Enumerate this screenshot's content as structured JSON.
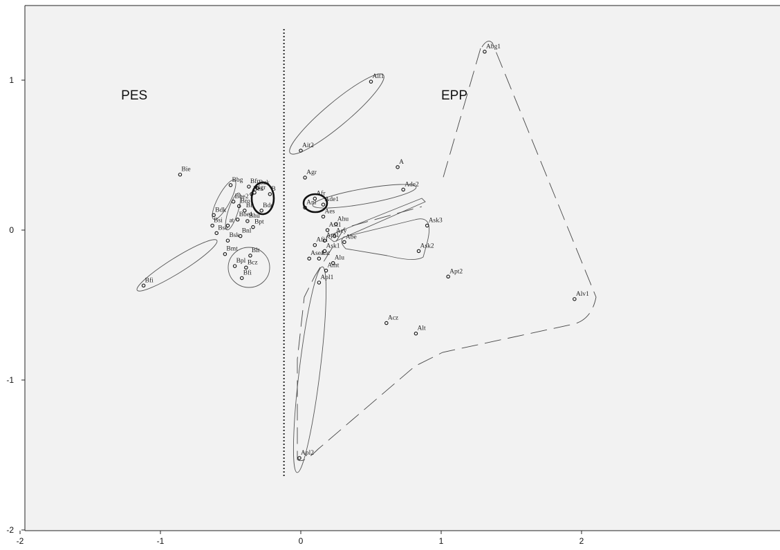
{
  "chart_data": {
    "type": "scatter",
    "title": "",
    "xlabel": "",
    "ylabel": "",
    "xlim": [
      -2,
      3.5
    ],
    "ylim": [
      -2,
      1.35
    ],
    "x_ticks": [
      -2,
      -1,
      0,
      1,
      2
    ],
    "x_tick_labels": [
      "-2",
      "-1",
      "0",
      "1",
      "2"
    ],
    "y_ticks": [
      -2,
      -1,
      0,
      1
    ],
    "y_tick_labels": [
      "-2",
      "-1",
      "0",
      "1"
    ],
    "grid": false,
    "background": "#f2f2f2",
    "divider_x": -0.12,
    "region_labels": [
      {
        "text": "PES",
        "x": -1.28,
        "y": 0.87
      },
      {
        "text": "EPP",
        "x": 1.0,
        "y": 0.87
      }
    ],
    "points": [
      {
        "label": "Bie",
        "x": -0.86,
        "y": 0.37
      },
      {
        "label": "Bbg",
        "x": -0.5,
        "y": 0.3
      },
      {
        "label": "Bfr",
        "x": -0.37,
        "y": 0.29
      },
      {
        "label": "Buk",
        "x": -0.31,
        "y": 0.28
      },
      {
        "label": "B",
        "x": -0.22,
        "y": 0.24
      },
      {
        "label": "Bgr",
        "x": -0.33,
        "y": 0.25
      },
      {
        "label": "Bes",
        "x": -0.35,
        "y": 0.24
      },
      {
        "label": "Bde",
        "x": -0.28,
        "y": 0.13
      },
      {
        "label": "Bbe2",
        "x": -0.48,
        "y": 0.19
      },
      {
        "label": "Bro",
        "x": -0.44,
        "y": 0.16
      },
      {
        "label": "Bit",
        "x": -0.4,
        "y": 0.13
      },
      {
        "label": "Bdk",
        "x": -0.62,
        "y": 0.1
      },
      {
        "label": "Bbe1",
        "x": -0.45,
        "y": 0.07
      },
      {
        "label": "Bhu",
        "x": -0.38,
        "y": 0.06
      },
      {
        "label": "at",
        "x": -0.52,
        "y": 0.03
      },
      {
        "label": "Bpt",
        "x": -0.34,
        "y": 0.02
      },
      {
        "label": "Bsi",
        "x": -0.63,
        "y": 0.03
      },
      {
        "label": "Bse",
        "x": -0.6,
        "y": -0.02
      },
      {
        "label": "Bnl",
        "x": -0.43,
        "y": -0.04
      },
      {
        "label": "Bsk",
        "x": -0.52,
        "y": -0.07
      },
      {
        "label": "Bmt",
        "x": -0.54,
        "y": -0.16
      },
      {
        "label": "Blt",
        "x": -0.36,
        "y": -0.17
      },
      {
        "label": "Bpl",
        "x": -0.47,
        "y": -0.24
      },
      {
        "label": "Bcz",
        "x": -0.39,
        "y": -0.25
      },
      {
        "label": "Bfi",
        "x": -0.42,
        "y": -0.32
      },
      {
        "label": "Bfi",
        "x": -1.12,
        "y": -0.37
      },
      {
        "label": "Ait1",
        "x": 0.5,
        "y": 0.99
      },
      {
        "label": "Ait2",
        "x": 0.0,
        "y": 0.53
      },
      {
        "label": "Abg1",
        "x": 1.31,
        "y": 1.19
      },
      {
        "label": "A",
        "x": 0.69,
        "y": 0.42
      },
      {
        "label": "Agr",
        "x": 0.03,
        "y": 0.35
      },
      {
        "label": "Ade2",
        "x": 0.73,
        "y": 0.27
      },
      {
        "label": "Afr",
        "x": 0.1,
        "y": 0.21
      },
      {
        "label": "Ade1",
        "x": 0.16,
        "y": 0.17
      },
      {
        "label": "Anl",
        "x": 0.03,
        "y": 0.15
      },
      {
        "label": "Aes",
        "x": 0.16,
        "y": 0.09
      },
      {
        "label": "Ahu",
        "x": 0.25,
        "y": 0.04
      },
      {
        "label": "Ask3",
        "x": 0.9,
        "y": 0.03
      },
      {
        "label": "Asi1",
        "x": 0.19,
        "y": 0.0
      },
      {
        "label": "Acy",
        "x": 0.24,
        "y": -0.04
      },
      {
        "label": "Afi1",
        "x": 0.1,
        "y": -0.1
      },
      {
        "label": "Apt1",
        "x": 0.17,
        "y": -0.07
      },
      {
        "label": "Abe",
        "x": 0.31,
        "y": -0.08
      },
      {
        "label": "Ask1",
        "x": 0.17,
        "y": -0.14
      },
      {
        "label": "Ask2",
        "x": 0.84,
        "y": -0.14
      },
      {
        "label": "Ase1",
        "x": 0.06,
        "y": -0.19
      },
      {
        "label": "Aat",
        "x": 0.13,
        "y": -0.19
      },
      {
        "label": "Alu",
        "x": 0.23,
        "y": -0.22
      },
      {
        "label": "Amt",
        "x": 0.18,
        "y": -0.27
      },
      {
        "label": "Apt2",
        "x": 1.05,
        "y": -0.31
      },
      {
        "label": "Apl1",
        "x": 0.13,
        "y": -0.35
      },
      {
        "label": "Alv1",
        "x": 1.95,
        "y": -0.46
      },
      {
        "label": "Acz",
        "x": 0.61,
        "y": -0.62
      },
      {
        "label": "Alt",
        "x": 0.82,
        "y": -0.69
      },
      {
        "label": "Apl2",
        "x": -0.01,
        "y": -1.52
      }
    ]
  }
}
